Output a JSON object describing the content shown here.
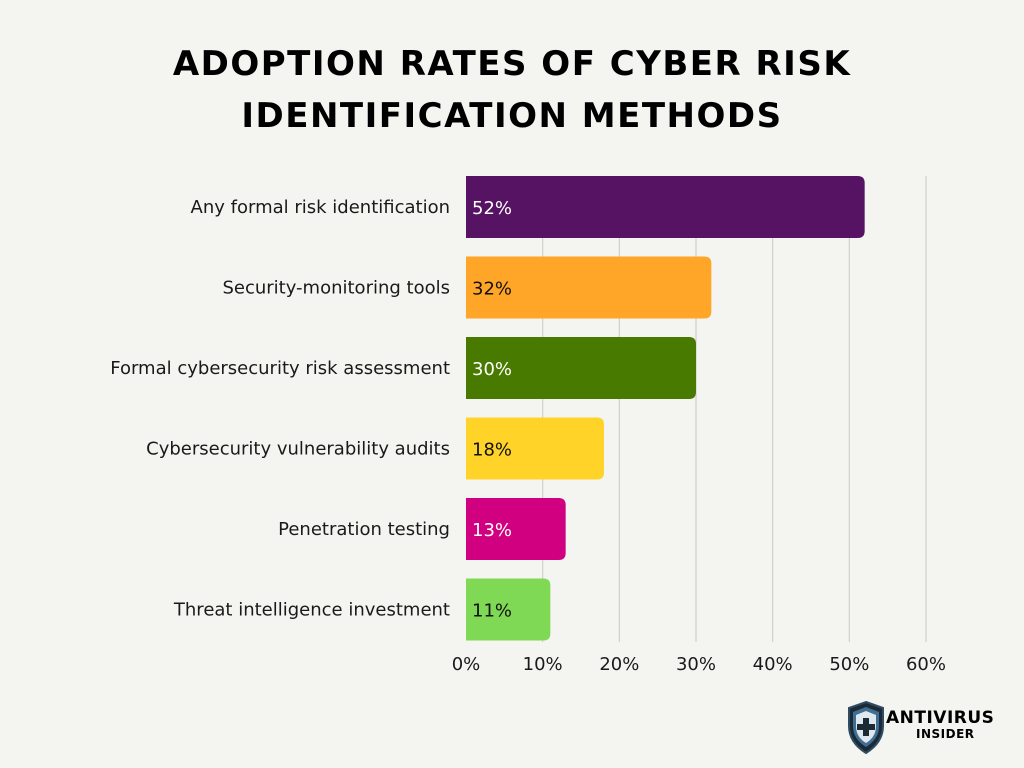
{
  "chart_data": {
    "type": "bar",
    "orientation": "horizontal",
    "title": "ADOPTION RATES OF CYBER RISK IDENTIFICATION METHODS",
    "title_lines": [
      "ADOPTION RATES OF CYBER RISK",
      "IDENTIFICATION METHODS"
    ],
    "categories": [
      "Any formal risk identification",
      "Security-monitoring tools",
      "Formal cybersecurity risk assessment",
      "Cybersecurity vulnerability audits",
      "Penetration testing",
      "Threat intelligence investment"
    ],
    "values": [
      52,
      32,
      30,
      18,
      13,
      11
    ],
    "data_labels": [
      "52%",
      "32%",
      "30%",
      "18%",
      "13%",
      "11%"
    ],
    "bar_colors": [
      "#561363",
      "#ffa527",
      "#497a00",
      "#ffd328",
      "#d10080",
      "#7fd955"
    ],
    "label_colors": [
      "#ffffff",
      "#111111",
      "#ffffff",
      "#111111",
      "#ffffff",
      "#111111"
    ],
    "x_ticks": [
      0,
      10,
      20,
      30,
      40,
      50,
      60
    ],
    "x_tick_labels": [
      "0%",
      "10%",
      "20%",
      "30%",
      "40%",
      "50%",
      "60%"
    ],
    "xlim": [
      0,
      60
    ],
    "xlabel": "",
    "ylabel": "",
    "grid": true,
    "legend": "none"
  },
  "logo": {
    "line1": "ANTIVIRUS",
    "line2": "INSIDER",
    "icon": "shield-plus-icon"
  }
}
